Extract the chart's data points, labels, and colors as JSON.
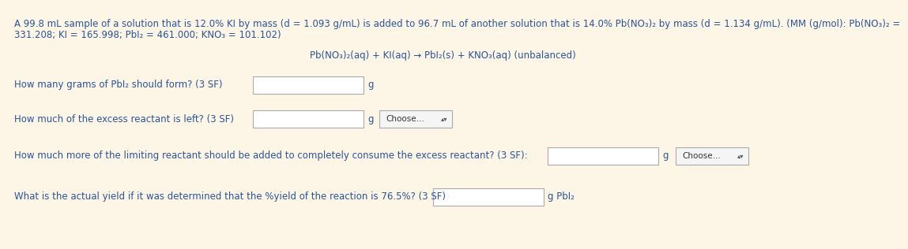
{
  "bg_color": "#fdf5e6",
  "text_color": "#2a5599",
  "header_text": "A 99.8 mL sample of a solution that is 12.0% KI by mass (d = 1.093 g/mL) is added to 96.7 mL of another solution that is 14.0% Pb(NO₃)₂ by mass (d = 1.134 g/mL). (MM (g/mol): Pb(NO₃)₂ =",
  "header_text2": "331.208; KI = 165.998; PbI₂ = 461.000; KNO₃ = 101.102)",
  "equation_text": "Pb(NO₃)₂(aq) + KI(aq) → PbI₂(s) + KNO₃(aq) (unbalanced)",
  "q1": "How many grams of PbI₂ should form? (3 SF)",
  "q1_unit": "g",
  "q2": "How much of the excess reactant is left? (3 SF)",
  "q2_unit": "g",
  "q3": "How much more of the limiting reactant should be added to completely consume the excess reactant? (3 SF):",
  "q3_unit": "g",
  "q4": "What is the actual yield if it was determined that the %yield of the reaction is 76.5%? (3 SF)",
  "q4_unit": "g PbI₂",
  "choose_label": "Choose...",
  "choose_arrows": "▴▾",
  "box_color": "#ffffff",
  "box_border": "#aaaaaa",
  "choose_bg": "#f5f5f5",
  "choose_border": "#aaaaaa"
}
